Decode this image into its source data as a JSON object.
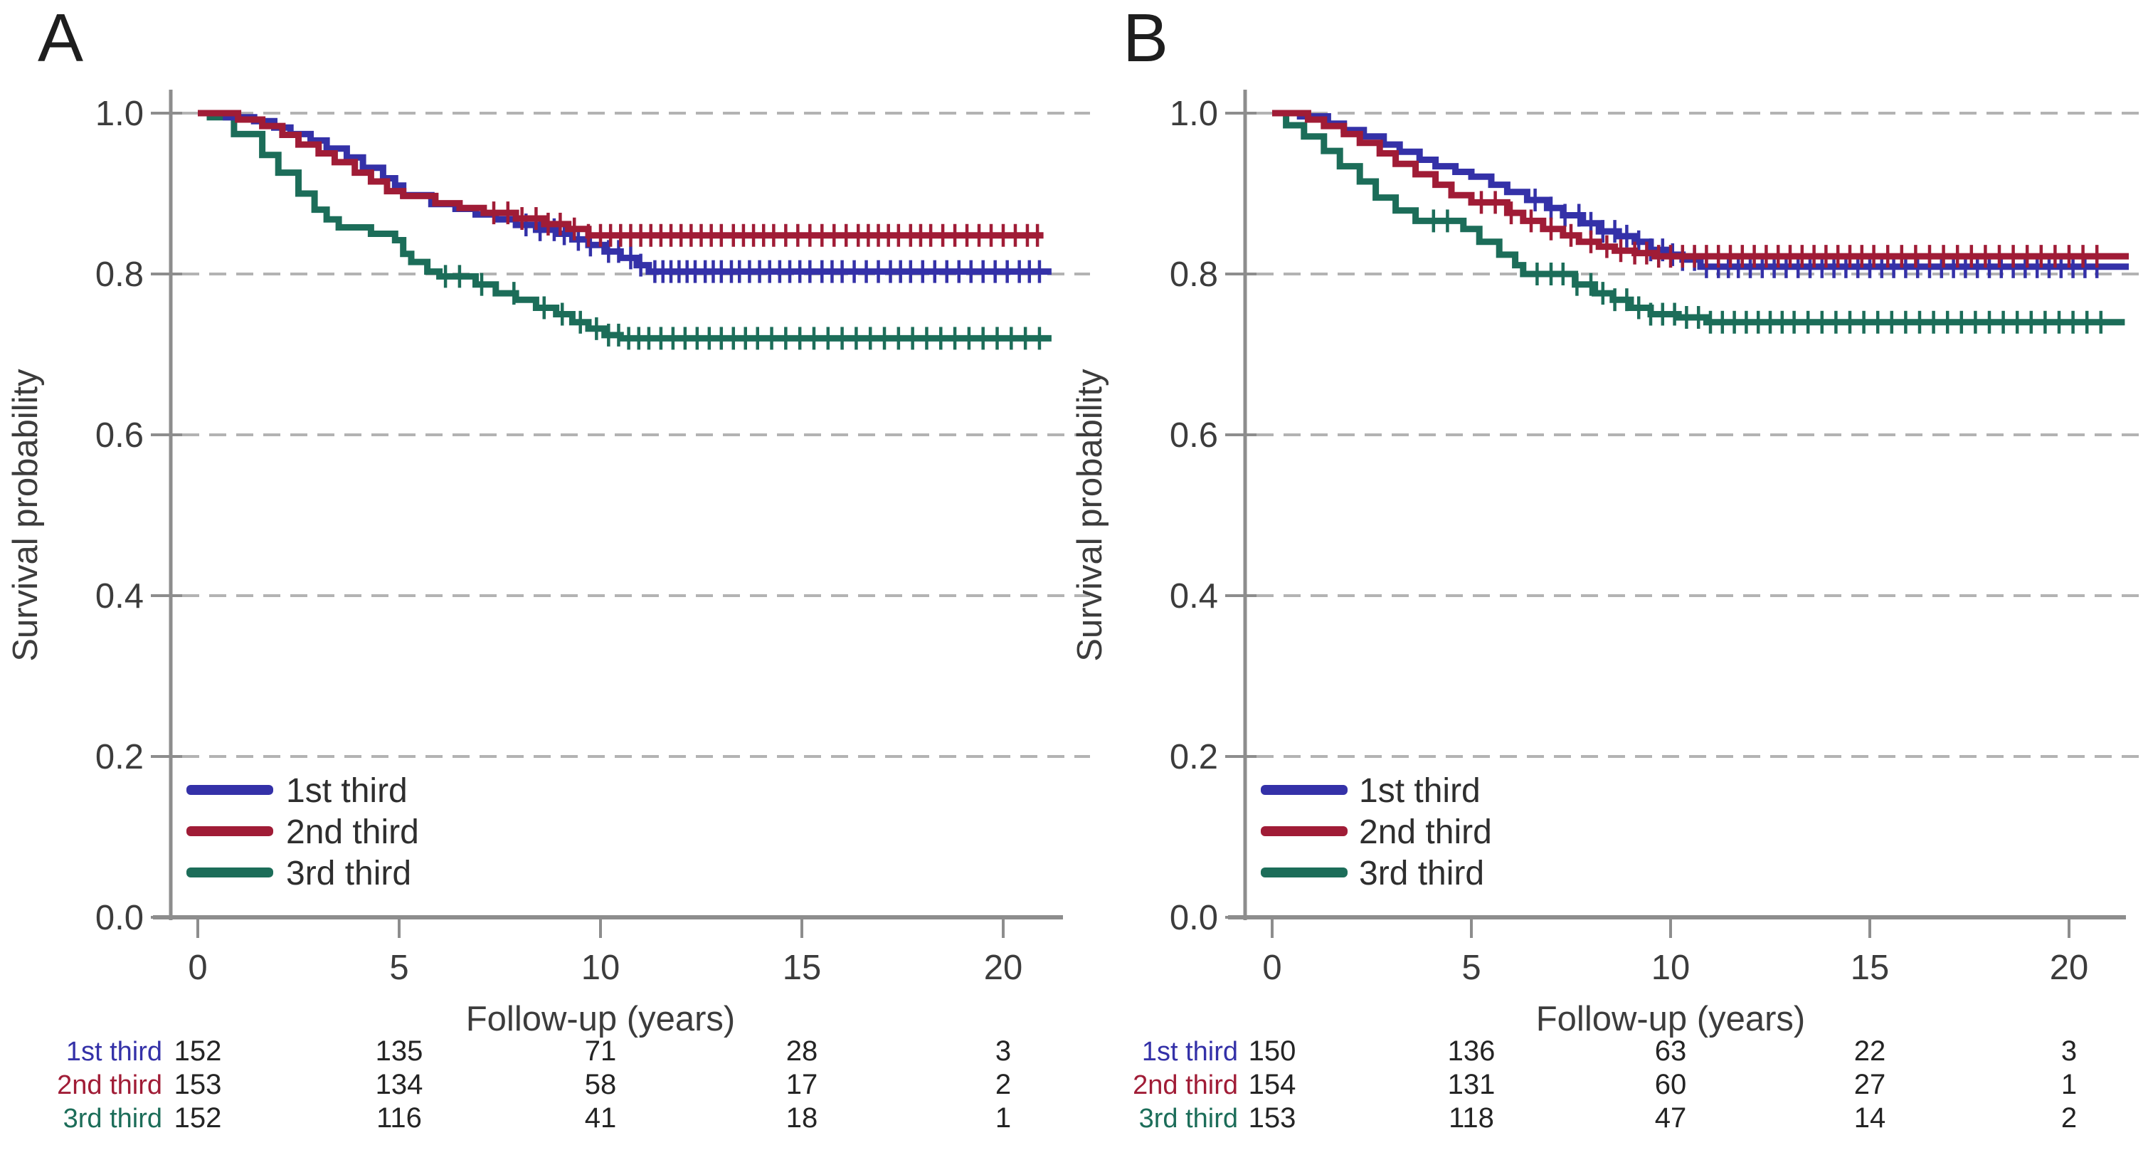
{
  "styles": {
    "background": "#ffffff",
    "axis_color": "#8d8d8d",
    "grid_color": "#b3b3b3",
    "label_color": "#3c3c3c",
    "number_color": "#242424",
    "panel_letter_color": "#1e1e1e",
    "series_colors": {
      "first": "#3431a8",
      "second": "#a01c36",
      "third": "#1c6d59"
    }
  },
  "chart_data": [
    {
      "type": "line",
      "subtype": "kaplan-meier-step",
      "panel_label": "A",
      "xlabel": "Follow-up (years)",
      "ylabel": "Survival probability",
      "xticks": [
        0,
        5,
        10,
        15,
        20
      ],
      "ytick_labels": [
        "1.0",
        "0.8",
        "0.6",
        "0.4",
        "0.2",
        "0.0"
      ],
      "ytick_values": [
        1.0,
        0.8,
        0.6,
        0.4,
        0.2,
        0.0
      ],
      "xlim": [
        0,
        21.2
      ],
      "ylim": [
        0.0,
        1.0
      ],
      "grid": "dashed-horizontal",
      "legend_position": "lower-left-inside",
      "series": [
        {
          "name": "1st third",
          "color": "#3431a8",
          "points": [
            [
              0,
              1.0
            ],
            [
              0.7,
              0.995
            ],
            [
              1.4,
              0.99
            ],
            [
              1.9,
              0.982
            ],
            [
              2.3,
              0.974
            ],
            [
              2.8,
              0.966
            ],
            [
              3.2,
              0.956
            ],
            [
              3.7,
              0.945
            ],
            [
              4.1,
              0.932
            ],
            [
              4.6,
              0.919
            ],
            [
              4.9,
              0.91
            ],
            [
              5.1,
              0.898
            ],
            [
              5.8,
              0.887
            ],
            [
              6.4,
              0.881
            ],
            [
              6.9,
              0.874
            ],
            [
              7.4,
              0.868
            ],
            [
              7.9,
              0.861
            ],
            [
              8.4,
              0.855
            ],
            [
              8.9,
              0.85
            ],
            [
              9.3,
              0.843
            ],
            [
              9.7,
              0.836
            ],
            [
              10.1,
              0.828
            ],
            [
              10.5,
              0.82
            ],
            [
              10.9,
              0.811
            ],
            [
              11.2,
              0.803
            ],
            [
              21.2,
              0.803
            ]
          ],
          "censor_ticks": [
            8.15,
            8.5,
            8.85,
            9.1,
            9.45,
            9.75,
            10.2,
            10.45,
            10.75,
            11.0,
            11.35,
            11.55,
            11.75,
            11.95,
            12.15,
            12.35,
            12.6,
            12.8,
            13.0,
            13.25,
            13.45,
            13.7,
            13.95,
            14.2,
            14.45,
            14.7,
            14.95,
            15.2,
            15.5,
            15.75,
            16.0,
            16.3,
            16.6,
            16.9,
            17.2,
            17.45,
            17.7,
            18.0,
            18.3,
            18.6,
            18.9,
            19.2,
            19.5,
            19.8,
            20.1,
            20.4,
            20.65,
            20.9
          ]
        },
        {
          "name": "2nd third",
          "color": "#a01c36",
          "points": [
            [
              0,
              1.0
            ],
            [
              1.0,
              0.992
            ],
            [
              1.6,
              0.984
            ],
            [
              2.1,
              0.973
            ],
            [
              2.5,
              0.961
            ],
            [
              3.0,
              0.95
            ],
            [
              3.4,
              0.939
            ],
            [
              3.9,
              0.926
            ],
            [
              4.3,
              0.915
            ],
            [
              4.7,
              0.903
            ],
            [
              5.1,
              0.897
            ],
            [
              5.9,
              0.888
            ],
            [
              6.5,
              0.882
            ],
            [
              7.1,
              0.876
            ],
            [
              7.9,
              0.869
            ],
            [
              8.6,
              0.862
            ],
            [
              9.2,
              0.856
            ],
            [
              9.7,
              0.848
            ],
            [
              21.0,
              0.848
            ]
          ],
          "censor_ticks": [
            7.35,
            7.7,
            8.05,
            8.4,
            8.7,
            9.0,
            9.35,
            9.7,
            10.0,
            10.25,
            10.5,
            10.75,
            11.0,
            11.25,
            11.5,
            11.75,
            12.0,
            12.25,
            12.5,
            12.75,
            13.0,
            13.3,
            13.55,
            13.8,
            14.05,
            14.3,
            14.6,
            14.9,
            15.2,
            15.5,
            15.8,
            16.1,
            16.4,
            16.65,
            16.9,
            17.15,
            17.4,
            17.7,
            17.95,
            18.2,
            18.5,
            18.8,
            19.1,
            19.4,
            19.7,
            20.0,
            20.3,
            20.6,
            20.85
          ]
        },
        {
          "name": "3rd third",
          "color": "#1c6d59",
          "points": [
            [
              0,
              1.0
            ],
            [
              0.3,
              0.995
            ],
            [
              0.9,
              0.974
            ],
            [
              1.6,
              0.948
            ],
            [
              2.0,
              0.926
            ],
            [
              2.5,
              0.9
            ],
            [
              2.9,
              0.88
            ],
            [
              3.2,
              0.868
            ],
            [
              3.5,
              0.858
            ],
            [
              4.3,
              0.85
            ],
            [
              4.9,
              0.842
            ],
            [
              5.1,
              0.825
            ],
            [
              5.3,
              0.815
            ],
            [
              5.7,
              0.803
            ],
            [
              6.0,
              0.797
            ],
            [
              6.9,
              0.787
            ],
            [
              7.4,
              0.776
            ],
            [
              7.9,
              0.768
            ],
            [
              8.4,
              0.758
            ],
            [
              8.9,
              0.75
            ],
            [
              9.3,
              0.74
            ],
            [
              9.7,
              0.732
            ],
            [
              10.1,
              0.724
            ],
            [
              10.5,
              0.72
            ],
            [
              21.2,
              0.72
            ]
          ],
          "censor_ticks": [
            6.15,
            6.5,
            7.05,
            7.85,
            8.6,
            9.05,
            9.5,
            9.9,
            10.2,
            10.45,
            10.7,
            10.95,
            11.2,
            11.5,
            11.8,
            12.1,
            12.4,
            12.7,
            13.0,
            13.3,
            13.6,
            13.9,
            14.25,
            14.6,
            14.95,
            15.3,
            15.65,
            16.0,
            16.35,
            16.7,
            17.05,
            17.4,
            17.75,
            18.1,
            18.45,
            18.8,
            19.15,
            19.5,
            19.85,
            20.2,
            20.55,
            20.9
          ]
        }
      ],
      "risk_table": {
        "rows": [
          {
            "label": "1st third",
            "color": "#3431a8",
            "values": [
              "152",
              "135",
              "71",
              "28",
              "3"
            ]
          },
          {
            "label": "2nd third",
            "color": "#a01c36",
            "values": [
              "153",
              "134",
              "58",
              "17",
              "2"
            ]
          },
          {
            "label": "3rd third",
            "color": "#1c6d59",
            "values": [
              "152",
              "116",
              "41",
              "18",
              "1"
            ]
          }
        ]
      }
    },
    {
      "type": "line",
      "subtype": "kaplan-meier-step",
      "panel_label": "B",
      "xlabel": "Follow-up (years)",
      "ylabel": "Survival probability",
      "xticks": [
        0,
        5,
        10,
        15,
        20
      ],
      "ytick_labels": [
        "1.0",
        "0.8",
        "0.6",
        "0.4",
        "0.2",
        "0.0"
      ],
      "ytick_values": [
        1.0,
        0.8,
        0.6,
        0.4,
        0.2,
        0.0
      ],
      "xlim": [
        0,
        21.5
      ],
      "ylim": [
        0.0,
        1.0
      ],
      "grid": "dashed-horizontal",
      "legend_position": "lower-left-inside",
      "series": [
        {
          "name": "1st third",
          "color": "#3431a8",
          "points": [
            [
              0,
              1.0
            ],
            [
              0.7,
              0.996
            ],
            [
              1.4,
              0.987
            ],
            [
              1.8,
              0.979
            ],
            [
              2.3,
              0.971
            ],
            [
              2.8,
              0.961
            ],
            [
              3.2,
              0.952
            ],
            [
              3.7,
              0.942
            ],
            [
              4.1,
              0.934
            ],
            [
              4.6,
              0.927
            ],
            [
              5.0,
              0.921
            ],
            [
              5.5,
              0.911
            ],
            [
              5.9,
              0.902
            ],
            [
              6.4,
              0.892
            ],
            [
              6.9,
              0.882
            ],
            [
              7.3,
              0.873
            ],
            [
              7.8,
              0.863
            ],
            [
              8.2,
              0.853
            ],
            [
              8.7,
              0.847
            ],
            [
              9.1,
              0.84
            ],
            [
              9.5,
              0.83
            ],
            [
              9.9,
              0.824
            ],
            [
              10.3,
              0.818
            ],
            [
              10.75,
              0.809
            ],
            [
              21.5,
              0.809
            ]
          ],
          "censor_ticks": [
            6.6,
            7.0,
            7.35,
            7.7,
            8.0,
            8.3,
            8.6,
            8.9,
            9.2,
            9.5,
            9.8,
            10.05,
            10.3,
            10.6,
            10.9,
            11.2,
            11.45,
            11.7,
            12.0,
            12.3,
            12.6,
            12.9,
            13.2,
            13.5,
            13.8,
            14.1,
            14.4,
            14.7,
            15.0,
            15.3,
            15.6,
            15.9,
            16.2,
            16.5,
            16.8,
            17.1,
            17.4,
            17.7,
            18.0,
            18.3,
            18.6,
            18.9,
            19.2,
            19.5,
            19.8,
            20.1,
            20.4,
            20.7
          ]
        },
        {
          "name": "2nd third",
          "color": "#a01c36",
          "points": [
            [
              0,
              1.0
            ],
            [
              0.9,
              0.992
            ],
            [
              1.3,
              0.984
            ],
            [
              1.8,
              0.974
            ],
            [
              2.2,
              0.963
            ],
            [
              2.7,
              0.95
            ],
            [
              3.1,
              0.937
            ],
            [
              3.6,
              0.924
            ],
            [
              4.1,
              0.911
            ],
            [
              4.5,
              0.898
            ],
            [
              5.0,
              0.889
            ],
            [
              5.9,
              0.876
            ],
            [
              6.3,
              0.866
            ],
            [
              6.8,
              0.856
            ],
            [
              7.3,
              0.848
            ],
            [
              7.7,
              0.84
            ],
            [
              8.2,
              0.834
            ],
            [
              8.6,
              0.829
            ],
            [
              9.1,
              0.826
            ],
            [
              9.6,
              0.822
            ],
            [
              21.5,
              0.822
            ]
          ],
          "censor_ticks": [
            5.25,
            5.6,
            6.0,
            6.5,
            7.0,
            7.5,
            8.0,
            8.4,
            8.75,
            9.1,
            9.4,
            9.7,
            10.0,
            10.3,
            10.6,
            10.9,
            11.2,
            11.5,
            11.8,
            12.1,
            12.4,
            12.7,
            13.0,
            13.3,
            13.6,
            13.9,
            14.2,
            14.5,
            14.8,
            15.1,
            15.45,
            15.8,
            16.15,
            16.5,
            16.85,
            17.2,
            17.55,
            17.9,
            18.25,
            18.6,
            18.95,
            19.3,
            19.65,
            20.0,
            20.35,
            20.7
          ]
        },
        {
          "name": "3rd third",
          "color": "#1c6d59",
          "points": [
            [
              0,
              1.0
            ],
            [
              0.35,
              0.985
            ],
            [
              0.8,
              0.971
            ],
            [
              1.3,
              0.953
            ],
            [
              1.7,
              0.934
            ],
            [
              2.2,
              0.915
            ],
            [
              2.6,
              0.895
            ],
            [
              3.1,
              0.879
            ],
            [
              3.6,
              0.866
            ],
            [
              4.8,
              0.856
            ],
            [
              5.2,
              0.84
            ],
            [
              5.7,
              0.824
            ],
            [
              6.1,
              0.811
            ],
            [
              6.3,
              0.8
            ],
            [
              7.6,
              0.787
            ],
            [
              8.1,
              0.776
            ],
            [
              8.55,
              0.768
            ],
            [
              9.0,
              0.758
            ],
            [
              9.5,
              0.75
            ],
            [
              10.2,
              0.746
            ],
            [
              10.9,
              0.74
            ],
            [
              21.4,
              0.74
            ]
          ],
          "censor_ticks": [
            4.05,
            4.4,
            6.65,
            7.0,
            7.3,
            7.65,
            8.0,
            8.3,
            8.6,
            8.9,
            9.2,
            9.5,
            9.8,
            10.1,
            10.4,
            10.7,
            11.0,
            11.3,
            11.6,
            11.9,
            12.2,
            12.5,
            12.8,
            13.1,
            13.45,
            13.8,
            14.15,
            14.5,
            14.85,
            15.2,
            15.55,
            15.9,
            16.25,
            16.6,
            16.95,
            17.3,
            17.65,
            18.0,
            18.35,
            18.7,
            19.05,
            19.4,
            19.75,
            20.1,
            20.45,
            20.8
          ]
        }
      ],
      "risk_table": {
        "rows": [
          {
            "label": "1st third",
            "color": "#3431a8",
            "values": [
              "150",
              "136",
              "63",
              "22",
              "3"
            ]
          },
          {
            "label": "2nd third",
            "color": "#a01c36",
            "values": [
              "154",
              "131",
              "60",
              "27",
              "1"
            ]
          },
          {
            "label": "3rd third",
            "color": "#1c6d59",
            "values": [
              "153",
              "118",
              "47",
              "14",
              "2"
            ]
          }
        ]
      }
    }
  ]
}
